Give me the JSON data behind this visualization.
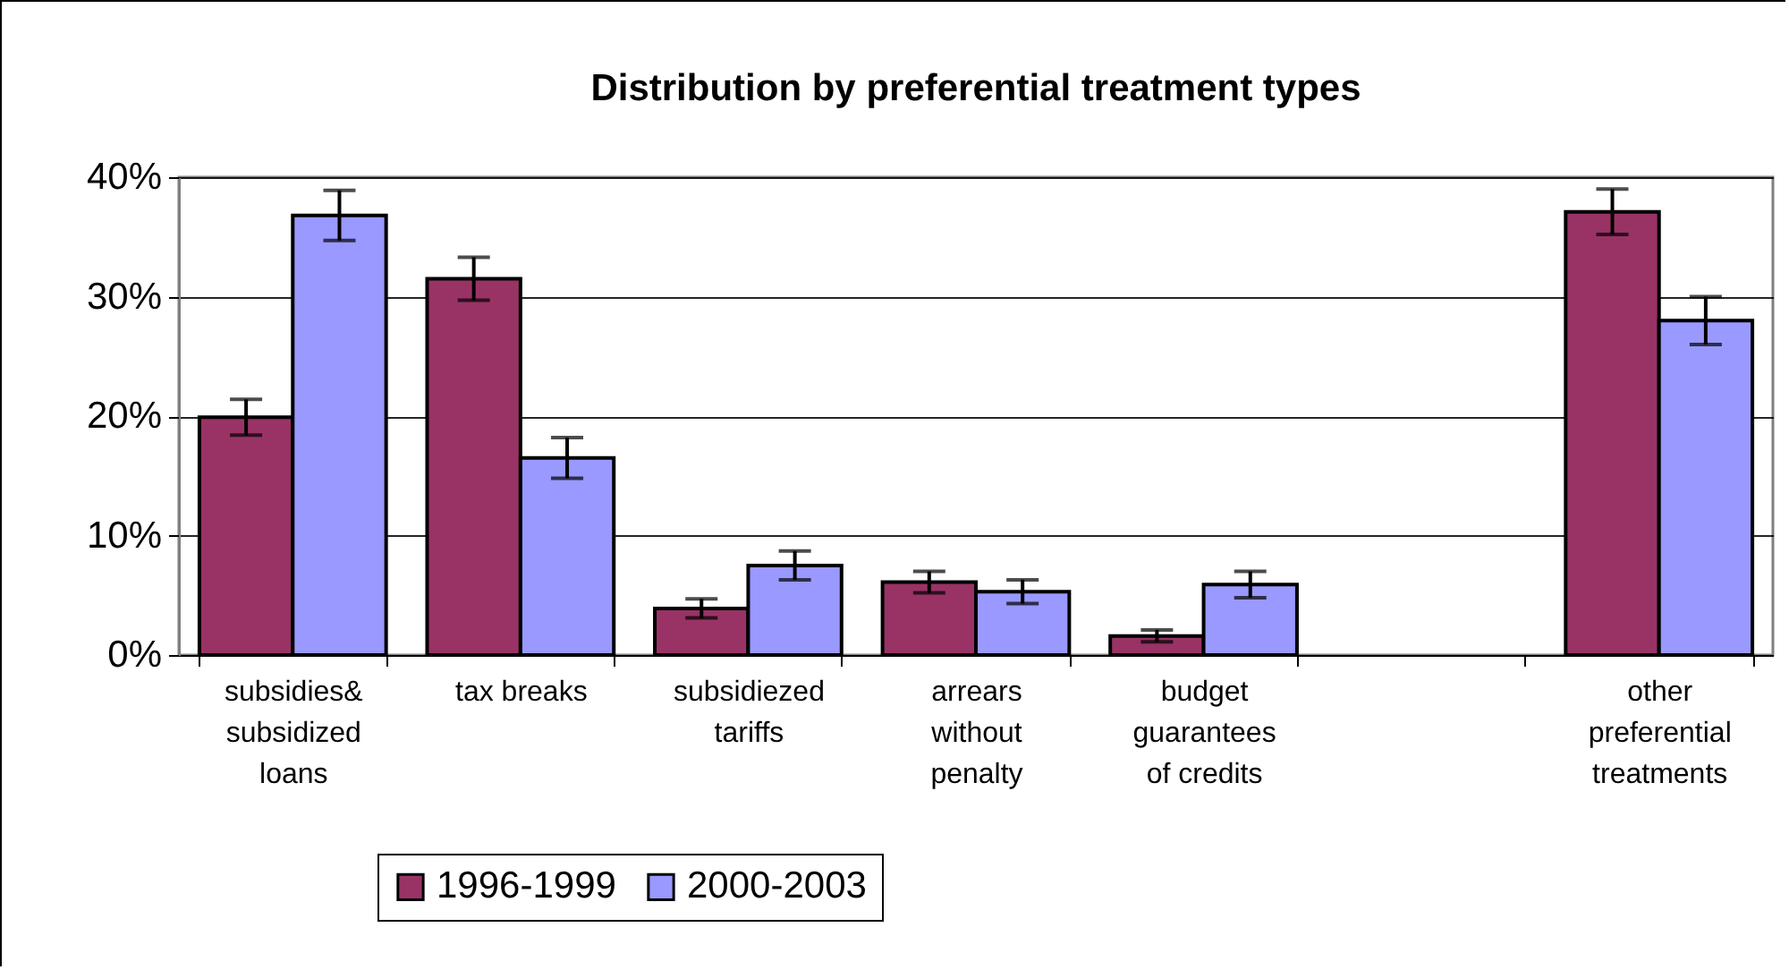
{
  "chart_data": {
    "type": "bar",
    "title": "Distribution by preferential treatment types",
    "categories": [
      "subsidies& subsidized loans",
      "tax breaks",
      "subsidiezed tariffs",
      "arrears without penalty",
      "budget guarantees of credits",
      null,
      "other preferential treatments"
    ],
    "series": [
      {
        "name": "1996-1999",
        "color": "#993366",
        "values": [
          19.9,
          31.5,
          3.9,
          6.1,
          1.6,
          null,
          37.1
        ],
        "errors": [
          1.5,
          1.8,
          0.8,
          0.9,
          0.5,
          null,
          1.9
        ]
      },
      {
        "name": "2000-2003",
        "color": "#9999ff",
        "values": [
          36.8,
          16.5,
          7.5,
          5.3,
          5.9,
          null,
          28.0
        ],
        "errors": [
          2.1,
          1.7,
          1.2,
          1.0,
          1.1,
          null,
          2.0
        ]
      }
    ],
    "ylim": [
      0,
      40
    ],
    "yticks": [
      {
        "value": 0,
        "label": "0%"
      },
      {
        "value": 10,
        "label": "10%"
      },
      {
        "value": 20,
        "label": "20%"
      },
      {
        "value": 30,
        "label": "30%"
      },
      {
        "value": 40,
        "label": "40%"
      }
    ],
    "grid": "y",
    "legend": "bottom left"
  }
}
